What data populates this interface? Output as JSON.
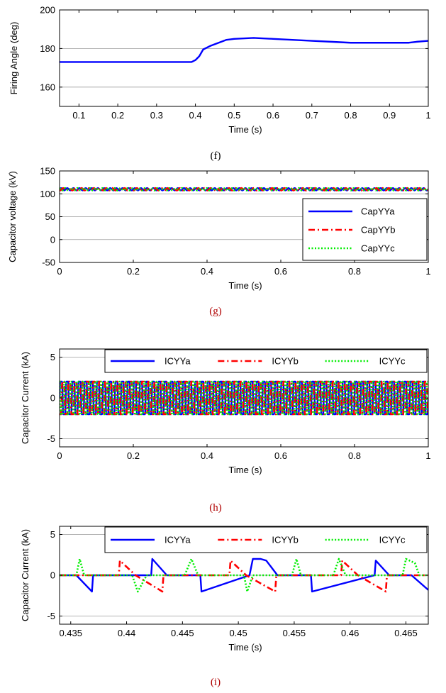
{
  "chart_data": [
    {
      "panel": "f",
      "caption": "(f)",
      "caption_color": "#000000",
      "type": "line",
      "xlabel": "Time (s)",
      "ylabel": "Firing Angle (deg)",
      "xlim": [
        0.05,
        1.0
      ],
      "ylim": [
        150,
        200
      ],
      "xticks": [
        0.1,
        0.2,
        0.3,
        0.4,
        0.5,
        0.6,
        0.7,
        0.8,
        0.9,
        1
      ],
      "xtick_labels": [
        "0.1",
        "0.2",
        "0.3",
        "0.4",
        "0.5",
        "0.6",
        "0.7",
        "0.8",
        "0.9",
        "1"
      ],
      "yticks": [
        160,
        180,
        200
      ],
      "ytick_labels": [
        "160",
        "180",
        "200"
      ],
      "grid": "horizontal",
      "series": [
        {
          "color": "#0000ff",
          "x": [
            0.05,
            0.1,
            0.2,
            0.3,
            0.35,
            0.39,
            0.4,
            0.41,
            0.42,
            0.44,
            0.46,
            0.48,
            0.5,
            0.55,
            0.6,
            0.65,
            0.7,
            0.75,
            0.8,
            0.85,
            0.9,
            0.95,
            0.97,
            1.0
          ],
          "y": [
            173,
            173,
            173,
            173,
            173,
            173,
            174,
            176,
            179.5,
            181.5,
            183,
            184.5,
            185,
            185.5,
            185,
            184.5,
            184,
            183.5,
            183,
            183,
            183,
            183,
            183.5,
            184
          ]
        }
      ]
    },
    {
      "panel": "g",
      "caption": "(g)",
      "caption_color": "#b00000",
      "type": "line",
      "xlabel": "Time (s)",
      "ylabel": "Capacitor voltage (kV)",
      "xlim": [
        0,
        1
      ],
      "ylim": [
        -50,
        150
      ],
      "xticks": [
        0,
        0.2,
        0.4,
        0.6,
        0.8,
        1
      ],
      "xtick_labels": [
        "0",
        "0.2",
        "0.4",
        "0.6",
        "0.8",
        "1"
      ],
      "yticks": [
        -50,
        0,
        50,
        100,
        150
      ],
      "ytick_labels": [
        "-50",
        "0",
        "50",
        "100",
        "150"
      ],
      "grid": "horizontal",
      "legend_position": "right",
      "series": [
        {
          "name": "CapYYa",
          "color": "#0000ff",
          "style": "solid",
          "mean": 110,
          "ripple": 2.5,
          "freq": 60
        },
        {
          "name": "CapYYb",
          "color": "#ff0000",
          "style": "dashdot",
          "mean": 110,
          "ripple": 2.5,
          "freq": 60
        },
        {
          "name": "CapYYc",
          "color": "#00ee00",
          "style": "dotted",
          "mean": 110,
          "ripple": 2.5,
          "freq": 60
        }
      ]
    },
    {
      "panel": "h",
      "caption": "(h)",
      "caption_color": "#b00000",
      "type": "line",
      "xlabel": "Time (s)",
      "ylabel": "Capacitor Current (kA)",
      "xlim": [
        0,
        1
      ],
      "ylim": [
        -6,
        6
      ],
      "xticks": [
        0,
        0.2,
        0.4,
        0.6,
        0.8,
        1
      ],
      "xtick_labels": [
        "0",
        "0.2",
        "0.4",
        "0.6",
        "0.8",
        "1"
      ],
      "yticks": [
        -5,
        0,
        5
      ],
      "ytick_labels": [
        "-5",
        "0",
        "5"
      ],
      "grid": "horizontal",
      "legend_position": "top",
      "series": [
        {
          "name": "ICYYa",
          "color": "#0000ff",
          "style": "solid",
          "amplitude": 2,
          "freq": 60
        },
        {
          "name": "ICYYb",
          "color": "#ff0000",
          "style": "dashdot",
          "amplitude": 2,
          "freq": 60
        },
        {
          "name": "ICYYc",
          "color": "#00ee00",
          "style": "dotted",
          "amplitude": 2,
          "freq": 60
        }
      ]
    },
    {
      "panel": "i",
      "caption": "(i)",
      "caption_color": "#b00000",
      "type": "line",
      "xlabel": "Time (s)",
      "ylabel": "Capacitor Current (kA)",
      "xlim": [
        0.434,
        0.467
      ],
      "ylim": [
        -6,
        6
      ],
      "xticks": [
        0.435,
        0.44,
        0.445,
        0.45,
        0.455,
        0.46,
        0.465
      ],
      "xtick_labels": [
        "0.435",
        "0.44",
        "0.445",
        "0.45",
        "0.455",
        "0.46",
        "0.465"
      ],
      "yticks": [
        -5,
        0,
        5
      ],
      "ytick_labels": [
        "-5",
        "0",
        "5"
      ],
      "grid": "horizontal",
      "legend_position": "top",
      "series": [
        {
          "name": "ICYYa",
          "color": "#0000ff",
          "style": "solid",
          "x": [
            0.434,
            0.4355,
            0.4369,
            0.437,
            0.4422,
            0.4423,
            0.4436,
            0.4466,
            0.4467,
            0.451,
            0.4513,
            0.452,
            0.4525,
            0.4535,
            0.4565,
            0.4566,
            0.4622,
            0.4623,
            0.4635,
            0.4655,
            0.467
          ],
          "y": [
            0,
            0,
            -2,
            0,
            0,
            2,
            0,
            0,
            -2,
            0,
            2,
            2,
            1.8,
            0,
            0,
            -2,
            0,
            1.8,
            0,
            0,
            -1.8
          ]
        },
        {
          "name": "ICYYb",
          "color": "#ff0000",
          "style": "dashdot",
          "x": [
            0.434,
            0.4393,
            0.4394,
            0.4408,
            0.4432,
            0.4433,
            0.4492,
            0.4493,
            0.4507,
            0.4533,
            0.4534,
            0.4592,
            0.4593,
            0.4607,
            0.4632,
            0.4633,
            0.467
          ],
          "y": [
            0,
            0,
            1.8,
            0,
            -2,
            0,
            0,
            1.8,
            0,
            -2,
            0,
            0,
            1.8,
            0,
            -2,
            0,
            0
          ]
        },
        {
          "name": "ICYYc",
          "color": "#00ee00",
          "style": "dotted",
          "x": [
            0.434,
            0.4355,
            0.4358,
            0.4362,
            0.4365,
            0.4405,
            0.441,
            0.4418,
            0.4422,
            0.4452,
            0.4458,
            0.4464,
            0.4468,
            0.4505,
            0.4508,
            0.4513,
            0.4516,
            0.4548,
            0.4552,
            0.4556,
            0.456,
            0.4585,
            0.459,
            0.4596,
            0.46,
            0.4647,
            0.465,
            0.4658,
            0.4662,
            0.467
          ],
          "y": [
            0,
            0,
            2,
            0,
            0,
            0,
            -2,
            0,
            0,
            0,
            2,
            0,
            0,
            0,
            -2,
            0,
            0,
            0,
            2,
            0,
            0,
            0,
            2,
            0,
            0,
            0,
            2,
            1.5,
            0,
            0
          ]
        }
      ]
    }
  ]
}
